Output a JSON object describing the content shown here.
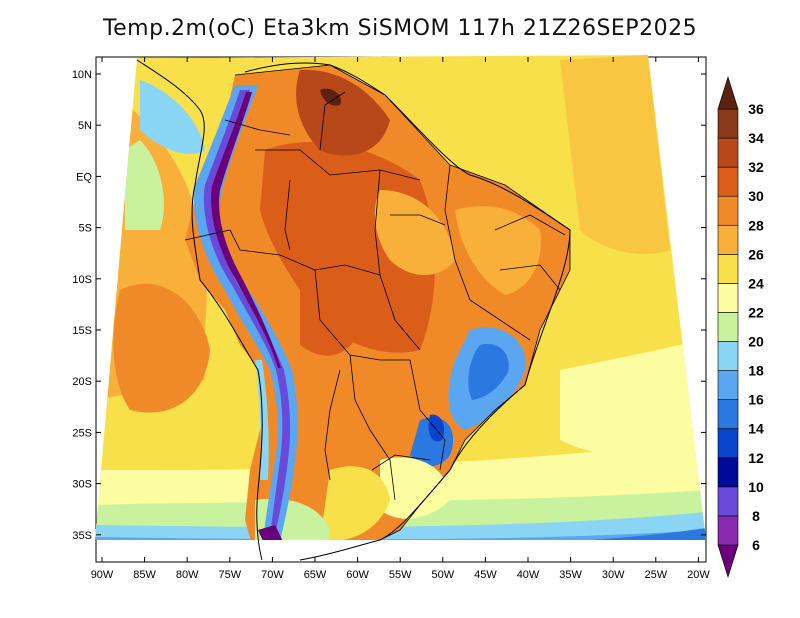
{
  "title": "Temp.2m(oC) Eta3km SiSMOM 117h 21Z26SEP2025",
  "map": {
    "lat_labels": [
      "10N",
      "5N",
      "EQ",
      "5S",
      "10S",
      "15S",
      "20S",
      "25S",
      "30S",
      "35S"
    ],
    "lon_labels": [
      "90W",
      "85W",
      "80W",
      "75W",
      "70W",
      "65W",
      "60W",
      "55W",
      "50W",
      "45W",
      "40W",
      "35W",
      "30W",
      "25W",
      "20W"
    ]
  },
  "colorbar": {
    "labels": [
      "6",
      "8",
      "10",
      "12",
      "14",
      "16",
      "18",
      "20",
      "22",
      "24",
      "26",
      "28",
      "30",
      "32",
      "34",
      "36"
    ],
    "colors": [
      "#6a007a",
      "#8a2ab0",
      "#6a4ad8",
      "#000a9a",
      "#0a44cc",
      "#2a78e0",
      "#5aa6f0",
      "#8ad4f4",
      "#c8f29e",
      "#fcfca0",
      "#f8e04a",
      "#f8b03a",
      "#f08a28",
      "#da5e1a",
      "#b8481a",
      "#8a3a1a",
      "#5a2210"
    ]
  }
}
